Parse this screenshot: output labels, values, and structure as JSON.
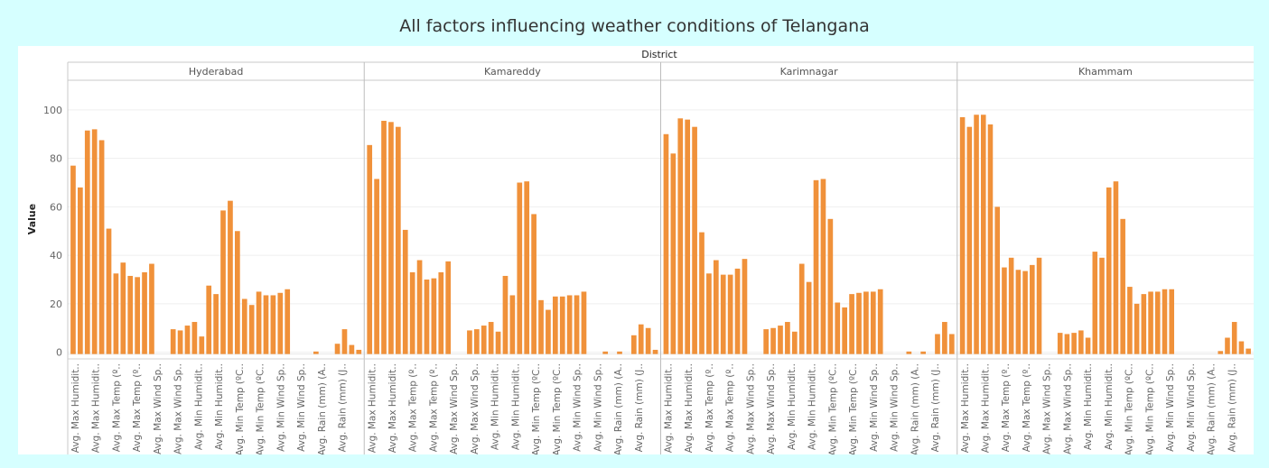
{
  "chart_data": {
    "type": "bar",
    "title": "All factors influencing weather conditions of Telangana",
    "column_header": "District",
    "ylabel": "Value",
    "ylim": [
      -2,
      110
    ],
    "yticks": [
      0,
      20,
      40,
      60,
      80,
      100
    ],
    "bar_color": "#f0913a",
    "category_labels": [
      "Avg. Max Humidit..",
      "Avg. Max Humidit..",
      "Avg. Max Temp (º..",
      "Avg. Max Temp (º..",
      "Avg. Max Wind Sp..",
      "Avg. Max Wind Sp..",
      "Avg. Min Humidit..",
      "Avg. Min Humidit..",
      "Avg. Min Temp (ºC..",
      "Avg. Min Temp (ºC..",
      "Avg. Min Wind Sp..",
      "Avg. Min Wind Sp..",
      "Avg. Rain (mm) (A..",
      "Avg. Rain (mm) (J.."
    ],
    "panels": [
      {
        "district": "Hyderabad",
        "values": [
          77,
          68,
          91.5,
          92,
          87.5,
          51,
          32.5,
          37,
          31.5,
          31,
          33,
          36.5,
          0,
          0,
          9.5,
          9,
          11,
          12.5,
          6.5,
          27.5,
          24,
          58.5,
          62.5,
          50,
          22,
          19.5,
          25,
          23.5,
          23.5,
          24.5,
          26,
          0,
          0,
          0,
          0.3,
          0,
          0,
          3.5,
          9.5,
          3,
          1
        ]
      },
      {
        "district": "Kamareddy",
        "values": [
          85.5,
          71.5,
          95.5,
          95,
          93,
          50.5,
          33,
          38,
          30,
          30.5,
          33,
          37.5,
          0,
          0,
          9,
          9.5,
          11,
          12.5,
          8.5,
          31.5,
          23.5,
          70,
          70.5,
          57,
          21.5,
          17.5,
          23,
          23,
          23.5,
          23.5,
          25,
          0,
          0,
          0.3,
          0,
          0.3,
          0,
          7,
          11.5,
          10,
          1
        ]
      },
      {
        "district": "Karimnagar",
        "values": [
          90,
          82,
          96.5,
          96,
          93,
          49.5,
          32.5,
          38,
          32,
          32,
          34.5,
          38.5,
          0,
          0,
          9.5,
          10,
          11,
          12.5,
          8.5,
          36.5,
          29,
          71,
          71.5,
          55,
          20.5,
          18.5,
          24,
          24.5,
          25,
          25,
          26,
          0,
          0,
          0,
          0.3,
          0,
          0.3,
          0,
          7.5,
          12.5,
          7.5
        ]
      },
      {
        "district": "Khammam",
        "values": [
          97,
          93,
          98,
          98,
          94,
          60,
          35,
          39,
          34,
          33.5,
          36,
          39,
          0,
          0,
          8,
          7.5,
          8,
          9,
          6,
          41.5,
          39,
          68,
          70.5,
          55,
          27,
          20,
          24,
          25,
          25,
          26,
          26,
          0,
          0,
          0,
          0,
          0,
          0,
          0.5,
          6,
          12.5,
          4.5,
          1.5
        ]
      }
    ]
  }
}
